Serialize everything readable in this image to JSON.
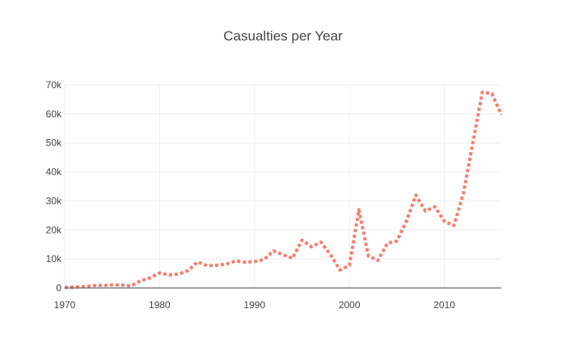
{
  "chart_data": {
    "type": "line",
    "title": "Casualties per Year",
    "xlabel": "",
    "ylabel": "",
    "xlim": [
      1970,
      2016
    ],
    "ylim": [
      0,
      70000
    ],
    "grid": true,
    "legend": "none",
    "x_ticks": [
      1970,
      1980,
      1990,
      2000,
      2010
    ],
    "x_tick_labels": [
      "1970",
      "1980",
      "1990",
      "2000",
      "2010"
    ],
    "y_ticks": [
      0,
      10000,
      20000,
      30000,
      40000,
      50000,
      60000,
      70000
    ],
    "y_tick_labels": [
      "0",
      "10k",
      "20k",
      "30k",
      "40k",
      "50k",
      "60k",
      "70k"
    ],
    "series": [
      {
        "color": "#f37f6e",
        "line_style": "dotted",
        "x": [
          1970,
          1971,
          1972,
          1973,
          1974,
          1975,
          1976,
          1977,
          1978,
          1979,
          1980,
          1981,
          1982,
          1983,
          1984,
          1985,
          1986,
          1987,
          1988,
          1989,
          1990,
          1991,
          1992,
          1993,
          1994,
          1995,
          1996,
          1997,
          1998,
          1999,
          2000,
          2001,
          2002,
          2003,
          2004,
          2005,
          2006,
          2007,
          2008,
          2009,
          2010,
          2011,
          2012,
          2013,
          2014,
          2015,
          2016
        ],
        "y": [
          200,
          300,
          500,
          800,
          900,
          1000,
          1000,
          700,
          2500,
          3500,
          5200,
          4500,
          4800,
          6000,
          9000,
          7700,
          7800,
          8200,
          9300,
          8900,
          9100,
          9800,
          12800,
          11500,
          10200,
          16500,
          14200,
          15800,
          11500,
          6200,
          7800,
          27000,
          11000,
          9500,
          15400,
          16200,
          23000,
          32000,
          26500,
          28000,
          23000,
          21500,
          32500,
          50000,
          67500,
          67000,
          59800
        ]
      }
    ]
  }
}
